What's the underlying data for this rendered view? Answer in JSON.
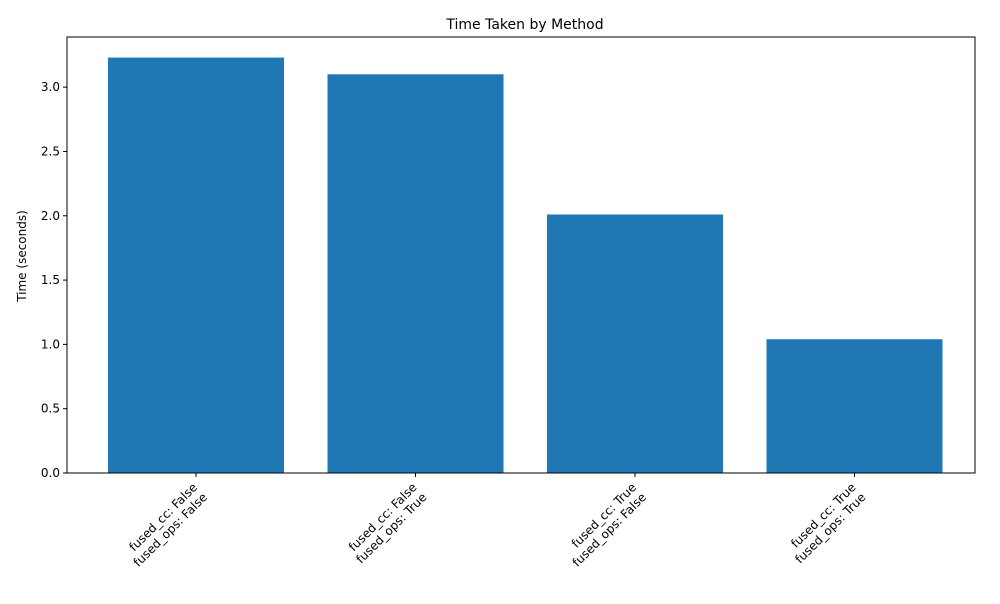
{
  "chart_data": {
    "type": "bar",
    "title": "Time Taken by Method",
    "xlabel": "",
    "ylabel": "Time (seconds)",
    "categories": [
      [
        "fused_cc: False",
        "fused_ops: False"
      ],
      [
        "fused_cc: False",
        "fused_ops: True"
      ],
      [
        "fused_cc: True",
        "fused_ops: False"
      ],
      [
        "fused_cc: True",
        "fused_ops: True"
      ]
    ],
    "values": [
      3.23,
      3.1,
      2.01,
      1.04
    ],
    "ylim": [
      0,
      3.39
    ],
    "yticks": [
      "0.0",
      "0.5",
      "1.0",
      "1.5",
      "2.0",
      "2.5",
      "3.0"
    ],
    "grid": false,
    "legend": "none",
    "bar_color": "#1f77b4"
  }
}
